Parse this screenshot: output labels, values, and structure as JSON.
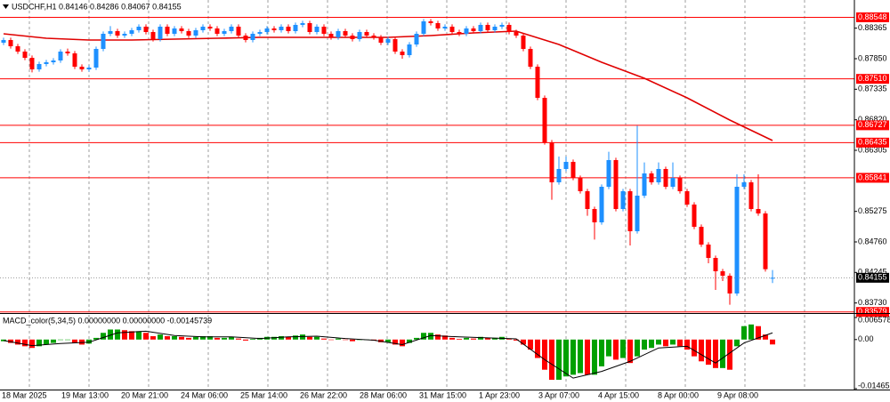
{
  "chart_data": [
    {
      "type": "candlestick",
      "title": "USDCHF,H1 0.84146 0.84286 0.84067 0.84155",
      "ylim": [
        0.8356,
        0.8884
      ],
      "yticks": [
        0.88365,
        {
          "value": 0.8785,
          "label": "0.87850"
        },
        0.87335,
        {
          "value": 0.8682,
          "label": "0.86820"
        },
        0.86305,
        0.85275,
        {
          "value": 0.8476,
          "label": "0.84760"
        },
        0.84245,
        {
          "value": 0.8373,
          "label": "0.83730"
        }
      ],
      "up_color": "#1e90ff",
      "down_color": "#ff0000",
      "candles": [
        [
          0.8812,
          0.88205,
          0.8808,
          0.88165
        ],
        [
          0.88165,
          0.88205,
          0.8802,
          0.8806
        ],
        [
          0.8806,
          0.881,
          0.8793,
          0.8797
        ],
        [
          0.8797,
          0.8801,
          0.87825,
          0.87865
        ],
        [
          0.87865,
          0.87905,
          0.8762,
          0.8767
        ],
        [
          0.8767,
          0.878,
          0.8763,
          0.8776
        ],
        [
          0.8776,
          0.8783,
          0.8772,
          0.8779
        ],
        [
          0.8779,
          0.8786,
          0.8775,
          0.8782
        ],
        [
          0.8782,
          0.8801,
          0.8778,
          0.8797
        ],
        [
          0.8797,
          0.8802,
          0.879,
          0.8794
        ],
        [
          0.8794,
          0.8798,
          0.87675,
          0.87715
        ],
        [
          0.87715,
          0.87755,
          0.8763,
          0.8767
        ],
        [
          0.8767,
          0.8774,
          0.8763,
          0.877
        ],
        [
          0.877,
          0.88055,
          0.8766,
          0.88015
        ],
        [
          0.88015,
          0.8831,
          0.87975,
          0.8827
        ],
        [
          0.8827,
          0.884,
          0.8823,
          0.88315
        ],
        [
          0.88315,
          0.88355,
          0.882,
          0.8824
        ],
        [
          0.8824,
          0.8831,
          0.882,
          0.8827
        ],
        [
          0.8827,
          0.8837,
          0.8823,
          0.8833
        ],
        [
          0.8833,
          0.8843,
          0.8829,
          0.8839
        ],
        [
          0.8839,
          0.8843,
          0.8826,
          0.883
        ],
        [
          0.883,
          0.8834,
          0.8814,
          0.8818
        ],
        [
          0.8818,
          0.8843,
          0.8814,
          0.8839
        ],
        [
          0.8839,
          0.8843,
          0.8823,
          0.8827
        ],
        [
          0.8827,
          0.884,
          0.8823,
          0.8836
        ],
        [
          0.8836,
          0.884,
          0.88275,
          0.88315
        ],
        [
          0.88315,
          0.88355,
          0.882,
          0.8824
        ],
        [
          0.8824,
          0.8837,
          0.882,
          0.8833
        ],
        [
          0.8833,
          0.8843,
          0.8829,
          0.8839
        ],
        [
          0.8839,
          0.8843,
          0.8832,
          0.8836
        ],
        [
          0.8836,
          0.884,
          0.8823,
          0.8827
        ],
        [
          0.8827,
          0.88355,
          0.8823,
          0.88315
        ],
        [
          0.88315,
          0.8843,
          0.88275,
          0.8839
        ],
        [
          0.8839,
          0.8843,
          0.882,
          0.8824
        ],
        [
          0.8824,
          0.8828,
          0.88125,
          0.88165
        ],
        [
          0.88165,
          0.8831,
          0.88125,
          0.8827
        ],
        [
          0.8827,
          0.8834,
          0.8823,
          0.883
        ],
        [
          0.883,
          0.884,
          0.8826,
          0.8836
        ],
        [
          0.8836,
          0.884,
          0.8829,
          0.8833
        ],
        [
          0.8833,
          0.8843,
          0.8829,
          0.8839
        ],
        [
          0.8839,
          0.8843,
          0.88275,
          0.88315
        ],
        [
          0.88315,
          0.8846,
          0.88275,
          0.8842
        ],
        [
          0.8842,
          0.8849,
          0.8838,
          0.8845
        ],
        [
          0.8845,
          0.8849,
          0.8826,
          0.883
        ],
        [
          0.883,
          0.8843,
          0.8826,
          0.8839
        ],
        [
          0.8839,
          0.8843,
          0.8823,
          0.8827
        ],
        [
          0.8827,
          0.8831,
          0.8817,
          0.8821
        ],
        [
          0.8821,
          0.88355,
          0.8817,
          0.88315
        ],
        [
          0.88315,
          0.88355,
          0.882,
          0.8824
        ],
        [
          0.8824,
          0.8828,
          0.8814,
          0.8818
        ],
        [
          0.8818,
          0.8834,
          0.8814,
          0.883
        ],
        [
          0.883,
          0.8834,
          0.882,
          0.8824
        ],
        [
          0.8824,
          0.8828,
          0.8817,
          0.8821
        ],
        [
          0.8821,
          0.8825,
          0.8808,
          0.8812
        ],
        [
          0.8812,
          0.8822,
          0.8808,
          0.8818
        ],
        [
          0.8818,
          0.8822,
          0.8793,
          0.8797
        ],
        [
          0.8797,
          0.8801,
          0.8785,
          0.8791
        ],
        [
          0.8791,
          0.8813,
          0.8787,
          0.8809
        ],
        [
          0.8809,
          0.8831,
          0.8805,
          0.8827
        ],
        [
          0.8827,
          0.8852,
          0.8823,
          0.8848
        ],
        [
          0.8848,
          0.8852,
          0.8841,
          0.8845
        ],
        [
          0.8845,
          0.8849,
          0.8832,
          0.8836
        ],
        [
          0.8836,
          0.8843,
          0.8832,
          0.8839
        ],
        [
          0.8839,
          0.8843,
          0.8826,
          0.883
        ],
        [
          0.883,
          0.8834,
          0.8823,
          0.8827
        ],
        [
          0.8827,
          0.884,
          0.8823,
          0.8836
        ],
        [
          0.8836,
          0.884,
          0.88275,
          0.88315
        ],
        [
          0.88315,
          0.8846,
          0.88275,
          0.8842
        ],
        [
          0.8842,
          0.8846,
          0.8829,
          0.8833
        ],
        [
          0.8833,
          0.8843,
          0.8829,
          0.8839
        ],
        [
          0.8839,
          0.8846,
          0.8835,
          0.8842
        ],
        [
          0.8842,
          0.8846,
          0.8826,
          0.883
        ],
        [
          0.883,
          0.8834,
          0.882,
          0.8824
        ],
        [
          0.8824,
          0.8828,
          0.87975,
          0.88015
        ],
        [
          0.88015,
          0.88055,
          0.87675,
          0.87715
        ],
        [
          0.87715,
          0.87755,
          0.8715,
          0.8719
        ],
        [
          0.8719,
          0.8723,
          0.864,
          0.8644
        ],
        [
          0.8644,
          0.8648,
          0.8547,
          0.85765
        ],
        [
          0.85765,
          0.862,
          0.85725,
          0.8599
        ],
        [
          0.8599,
          0.862,
          0.8595,
          0.8611
        ],
        [
          0.8611,
          0.8615,
          0.858,
          0.8584
        ],
        [
          0.8584,
          0.8588,
          0.85575,
          0.85615
        ],
        [
          0.85615,
          0.85655,
          0.852,
          0.85315
        ],
        [
          0.85315,
          0.85355,
          0.848,
          0.8509
        ],
        [
          0.8509,
          0.8573,
          0.8505,
          0.8569
        ],
        [
          0.8569,
          0.8628,
          0.8565,
          0.8614
        ],
        [
          0.8614,
          0.8618,
          0.85275,
          0.85315
        ],
        [
          0.85315,
          0.85655,
          0.85275,
          0.85615
        ],
        [
          0.85615,
          0.85655,
          0.847,
          0.8494
        ],
        [
          0.8494,
          0.8672,
          0.849,
          0.8554
        ],
        [
          0.8554,
          0.861,
          0.855,
          0.85915
        ],
        [
          0.85915,
          0.85955,
          0.85725,
          0.85765
        ],
        [
          0.85765,
          0.861,
          0.85725,
          0.8599
        ],
        [
          0.8599,
          0.8603,
          0.8565,
          0.8569
        ],
        [
          0.8569,
          0.861,
          0.8565,
          0.8584
        ],
        [
          0.8584,
          0.8588,
          0.85575,
          0.85615
        ],
        [
          0.85615,
          0.85655,
          0.8535,
          0.8539
        ],
        [
          0.8539,
          0.8543,
          0.84975,
          0.85015
        ],
        [
          0.85015,
          0.85055,
          0.84675,
          0.84715
        ],
        [
          0.84715,
          0.84755,
          0.844,
          0.8449
        ],
        [
          0.8449,
          0.8453,
          0.8395,
          0.84265
        ],
        [
          0.84265,
          0.84305,
          0.841,
          0.8419
        ],
        [
          0.8419,
          0.8423,
          0.837,
          0.8389
        ],
        [
          0.8389,
          0.859,
          0.8385,
          0.8569
        ],
        [
          0.8569,
          0.859,
          0.8565,
          0.85765
        ],
        [
          0.85765,
          0.85805,
          0.85275,
          0.85315
        ],
        [
          0.85315,
          0.859,
          0.852,
          0.8524
        ],
        [
          0.8524,
          0.8528,
          0.8426,
          0.843
        ],
        [
          0.84146,
          0.84286,
          0.84067,
          0.84155
        ]
      ],
      "ma": {
        "color": "#e00000",
        "x": [
          0,
          6,
          12,
          18,
          24,
          30,
          36,
          42,
          48,
          54,
          60,
          66,
          72,
          78,
          84,
          90,
          96,
          102,
          108
        ],
        "values": [
          0.8827,
          0.88195,
          0.88165,
          0.88165,
          0.8818,
          0.88195,
          0.8821,
          0.8821,
          0.8821,
          0.8821,
          0.8824,
          0.88285,
          0.88315,
          0.8809,
          0.8779,
          0.8752,
          0.8719,
          0.86815,
          0.8647
        ]
      },
      "level_color": "#ff0000",
      "levels": [
        0.88548,
        {
          "value": 0.8751,
          "label": "0.87510"
        },
        0.86727,
        0.86435,
        0.85841,
        0.83579
      ],
      "last_price": 0.84155,
      "x_labels": [
        "18 Mar 2025",
        "19 Mar 13:00",
        "20 Mar 21:00",
        "24 Mar 06:00",
        "25 Mar 14:00",
        "26 Mar 22:00",
        "28 Mar 06:00",
        "31 Mar 15:00",
        "1 Apr 23:00",
        "3 Apr 07:00",
        "4 Apr 15:00",
        "8 Apr 00:00",
        "9 Apr 08:00"
      ]
    },
    {
      "type": "macd",
      "title": "MACD_color(5,34,5) 0.00000000 0.00000000 -0.00145739",
      "ylim": [
        -0.0146517,
        0.0065782
      ],
      "yticks": [
        0.0065782,
        {
          "value": 0,
          "label": "0.00"
        },
        -0.0146517
      ],
      "up_color": "#00a000",
      "down_color": "#ff0000",
      "histogram": [
        -0.0005,
        -0.001,
        -0.0015,
        -0.002,
        -0.0025,
        -0.002,
        -0.0015,
        -0.001,
        0,
        0,
        -0.001,
        -0.0015,
        -0.0012,
        0.0005,
        0.002,
        0.003,
        0.003,
        0.0028,
        0.0025,
        0.0025,
        0.002,
        0.001,
        0.0015,
        0.001,
        0.001,
        0.0008,
        0.0005,
        0.0008,
        0.001,
        0.001,
        0.0005,
        0.0005,
        0.0008,
        0.0003,
        -0.0003,
        0.0002,
        0.0005,
        0.0008,
        0.0008,
        0.001,
        0.0008,
        0.0012,
        0.0015,
        0.0008,
        0.0008,
        0.0003,
        0,
        0.0003,
        0,
        -0.0005,
        0,
        0,
        -0.0003,
        -0.0008,
        -0.0008,
        -0.0015,
        -0.002,
        -0.001,
        0.0005,
        0.002,
        0.002,
        0.0015,
        0.0012,
        0.0005,
        0.0002,
        0.0005,
        0.0003,
        0.0008,
        0.0005,
        0.0005,
        0.0008,
        0.0002,
        -0.0003,
        -0.0015,
        -0.003,
        -0.0055,
        -0.009,
        -0.012,
        -0.012,
        -0.011,
        -0.0105,
        -0.01,
        -0.0105,
        -0.0105,
        -0.008,
        -0.005,
        -0.006,
        -0.0055,
        -0.007,
        -0.005,
        -0.003,
        -0.0025,
        -0.0015,
        -0.002,
        -0.0015,
        -0.002,
        -0.003,
        -0.005,
        -0.0065,
        -0.0075,
        -0.0085,
        -0.0085,
        -0.009,
        -0.002,
        0.004,
        0.0045,
        0.004,
        0.0015,
        -0.00145739
      ],
      "signal": {
        "color": "#000000",
        "x": [
          0,
          4,
          8,
          12,
          16,
          20,
          24,
          28,
          32,
          36,
          40,
          44,
          48,
          52,
          56,
          60,
          64,
          68,
          72,
          76,
          80,
          84,
          88,
          92,
          96,
          100,
          104,
          108
        ],
        "values": [
          -0.0003,
          -0.0018,
          -0.0012,
          -0.0008,
          0.002,
          0.0025,
          0.0012,
          0.0008,
          0.0008,
          0.0003,
          0.0008,
          0.001,
          0.0003,
          -0.0002,
          -0.0015,
          0.0012,
          0.0008,
          0.0005,
          0.0002,
          -0.006,
          -0.0115,
          -0.0095,
          -0.0065,
          -0.0025,
          -0.002,
          -0.007,
          -0.001,
          0.002
        ]
      }
    }
  ]
}
